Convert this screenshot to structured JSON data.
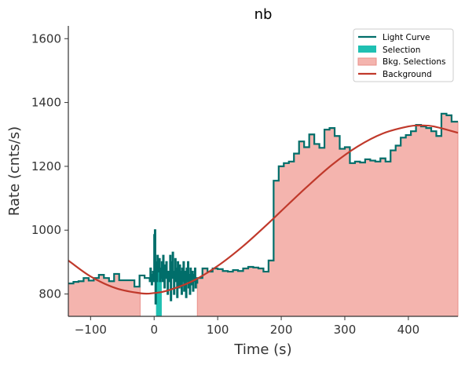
{
  "chart_data": {
    "type": "line",
    "title": "nb",
    "xlabel": "Time (s)",
    "ylabel": "Rate (cnts/s)",
    "xlim": [
      -135,
      478
    ],
    "ylim": [
      730,
      1640
    ],
    "x_ticks": [
      -100,
      0,
      100,
      200,
      300,
      400
    ],
    "x_tick_labels": [
      "−100",
      "0",
      "100",
      "200",
      "300",
      "400"
    ],
    "y_ticks": [
      800,
      1000,
      1200,
      1400,
      1600
    ],
    "y_tick_labels": [
      "800",
      "1000",
      "1200",
      "1400",
      "1600"
    ],
    "grid": false,
    "legend": {
      "placement": "top-right",
      "entries": [
        {
          "label": "Light Curve",
          "kind": "line",
          "color": "#006e6a"
        },
        {
          "label": "Selection",
          "kind": "patch",
          "color": "#1fc0b2"
        },
        {
          "label": "Bkg. Selections",
          "kind": "patch",
          "color": "#f4b4ae"
        },
        {
          "label": "Background",
          "kind": "line",
          "color": "#c0392b"
        }
      ]
    },
    "colors": {
      "light_curve": "#006e6a",
      "selection": "#1fc0b2",
      "bkg_selection_fill": "#f4b4ae",
      "bkg_selection_edge": "#e8908a",
      "background": "#c0392b",
      "axis": "#333333"
    },
    "selection": {
      "start": 3,
      "end": 12
    },
    "bkg_selections": [
      {
        "start": -135,
        "end": -22
      },
      {
        "start": 68,
        "end": 478
      }
    ],
    "background_model": {
      "x": [
        -135,
        -100,
        -60,
        -20,
        0,
        20,
        60,
        100,
        140,
        180,
        200,
        240,
        280,
        320,
        360,
        400,
        420,
        440,
        478
      ],
      "y": [
        905,
        855,
        818,
        802,
        803,
        810,
        840,
        888,
        950,
        1022,
        1060,
        1135,
        1205,
        1262,
        1303,
        1325,
        1328,
        1325,
        1305
      ]
    },
    "light_curve": {
      "x": [
        -135,
        -127,
        -119,
        -111,
        -103,
        -95,
        -87,
        -79,
        -71,
        -63,
        -55,
        -47,
        -39,
        -31,
        -23,
        -15,
        -7,
        -6,
        -5,
        -4,
        -3,
        -2,
        -1,
        0,
        1,
        2,
        3,
        4,
        5,
        6,
        7,
        8,
        9,
        10,
        11,
        12,
        13,
        14,
        15,
        16,
        17,
        18,
        19,
        20,
        21,
        22,
        23,
        24,
        25,
        26,
        27,
        28,
        29,
        30,
        31,
        32,
        33,
        34,
        35,
        36,
        37,
        38,
        39,
        40,
        41,
        42,
        43,
        44,
        45,
        46,
        47,
        48,
        49,
        50,
        51,
        52,
        53,
        54,
        55,
        56,
        57,
        58,
        59,
        60,
        61,
        62,
        63,
        64,
        65,
        66,
        67,
        68,
        76,
        84,
        92,
        100,
        108,
        116,
        124,
        132,
        140,
        148,
        156,
        164,
        172,
        180,
        188,
        196,
        204,
        212,
        220,
        228,
        236,
        244,
        252,
        260,
        268,
        276,
        284,
        292,
        300,
        308,
        316,
        324,
        332,
        340,
        348,
        356,
        364,
        372,
        380,
        388,
        396,
        404,
        412,
        420,
        428,
        436,
        444,
        452,
        460,
        468,
        478
      ],
      "y": [
        833,
        838,
        840,
        850,
        842,
        850,
        860,
        850,
        840,
        863,
        843,
        843,
        843,
        823,
        858,
        850,
        840,
        880,
        850,
        830,
        860,
        870,
        840,
        985,
        1000,
        770,
        900,
        840,
        920,
        870,
        890,
        910,
        840,
        850,
        880,
        900,
        840,
        920,
        870,
        820,
        890,
        850,
        900,
        860,
        800,
        870,
        850,
        840,
        920,
        780,
        900,
        850,
        930,
        870,
        800,
        860,
        910,
        840,
        880,
        790,
        900,
        860,
        820,
        890,
        830,
        870,
        800,
        880,
        840,
        900,
        810,
        870,
        850,
        790,
        880,
        840,
        900,
        820,
        860,
        800,
        880,
        850,
        830,
        870,
        810,
        860,
        840,
        880,
        820,
        850,
        835,
        850,
        880,
        870,
        880,
        878,
        872,
        870,
        875,
        872,
        880,
        885,
        883,
        880,
        870,
        905,
        1155,
        1200,
        1210,
        1215,
        1240,
        1278,
        1260,
        1300,
        1270,
        1258,
        1315,
        1320,
        1295,
        1255,
        1260,
        1210,
        1215,
        1212,
        1222,
        1218,
        1215,
        1225,
        1215,
        1250,
        1265,
        1290,
        1298,
        1310,
        1330,
        1325,
        1320,
        1310,
        1295,
        1365,
        1360,
        1340,
        1340
      ]
    }
  }
}
